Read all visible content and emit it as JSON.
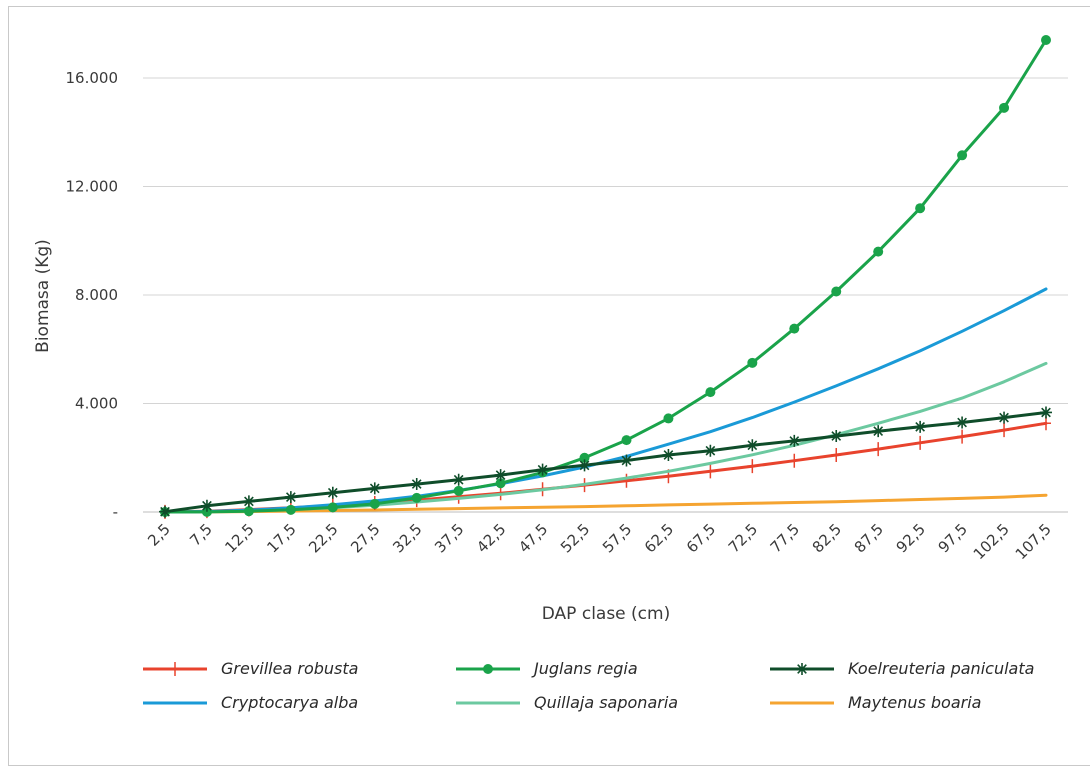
{
  "chart_data": {
    "type": "line",
    "xlabel": "DAP clase (cm)",
    "ylabel": "Biomasa (Kg)",
    "ylim": [
      0,
      17500
    ],
    "yticks": [
      {
        "value": 0,
        "label": "-"
      },
      {
        "value": 4000,
        "label": "4.000"
      },
      {
        "value": 8000,
        "label": "8.000"
      },
      {
        "value": 12000,
        "label": "12.000"
      },
      {
        "value": 16000,
        "label": "16.000"
      }
    ],
    "grid": true,
    "legend_position": "bottom",
    "categories": [
      "2,5",
      "7,5",
      "12,5",
      "17,5",
      "22,5",
      "27,5",
      "32,5",
      "37,5",
      "42,5",
      "47,5",
      "52,5",
      "57,5",
      "62,5",
      "67,5",
      "72,5",
      "77,5",
      "82,5",
      "87,5",
      "92,5",
      "97,5",
      "102,5",
      "107,5"
    ],
    "series": [
      {
        "name": "Grevillea robusta",
        "color": "#e8432d",
        "marker": "plus",
        "values": [
          5,
          30,
          90,
          160,
          240,
          330,
          440,
          560,
          690,
          840,
          990,
          1150,
          1320,
          1500,
          1690,
          1890,
          2100,
          2320,
          2550,
          2780,
          3020,
          3270
        ]
      },
      {
        "name": "Juglans regia",
        "color": "#1aa34a",
        "marker": "circle",
        "values": [
          0,
          5,
          30,
          80,
          170,
          300,
          520,
          780,
          1060,
          1460,
          2000,
          2650,
          3450,
          4420,
          5500,
          6760,
          8130,
          9600,
          11200,
          13150,
          14900,
          17400
        ]
      },
      {
        "name": "Koelreuteria paniculata",
        "color": "#0f4d2a",
        "marker": "star",
        "values": [
          10,
          230,
          390,
          550,
          710,
          870,
          1030,
          1190,
          1360,
          1560,
          1720,
          1900,
          2100,
          2260,
          2460,
          2620,
          2800,
          2980,
          3140,
          3300,
          3480,
          3670
        ]
      },
      {
        "name": "Cryptocarya alba",
        "color": "#1a9ad7",
        "marker": "none",
        "values": [
          0,
          20,
          70,
          150,
          270,
          410,
          580,
          800,
          1040,
          1330,
          1660,
          2050,
          2500,
          2960,
          3480,
          4050,
          4650,
          5280,
          5940,
          6660,
          7420,
          8220
        ]
      },
      {
        "name": "Quillaja saponaria",
        "color": "#6cc9a0",
        "marker": "none",
        "values": [
          0,
          10,
          40,
          90,
          160,
          250,
          370,
          500,
          650,
          820,
          1020,
          1250,
          1500,
          1790,
          2110,
          2460,
          2850,
          3270,
          3710,
          4200,
          4800,
          5480
        ]
      },
      {
        "name": "Maytenus boaria",
        "color": "#f5a431",
        "marker": "none",
        "values": [
          0,
          5,
          15,
          35,
          55,
          75,
          100,
          125,
          150,
          175,
          200,
          230,
          260,
          290,
          320,
          350,
          380,
          420,
          460,
          500,
          550,
          620
        ]
      }
    ]
  }
}
